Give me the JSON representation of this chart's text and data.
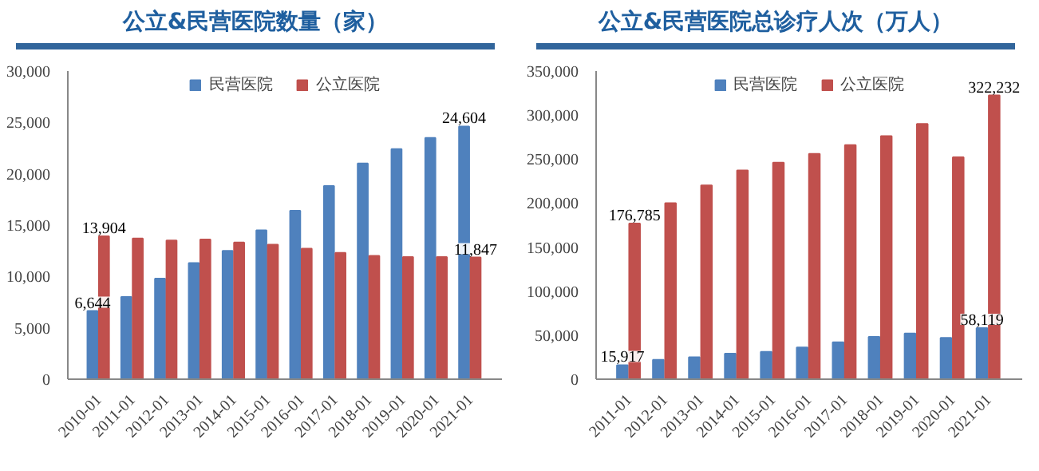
{
  "chart_data": [
    {
      "type": "bar",
      "title": "公立&民营医院数量（家）",
      "categories": [
        "2010-01",
        "2011-01",
        "2012-01",
        "2013-01",
        "2014-01",
        "2015-01",
        "2016-01",
        "2017-01",
        "2018-01",
        "2019-01",
        "2020-01",
        "2021-01"
      ],
      "series": [
        {
          "name": "民营医院",
          "color": "#4f81bd",
          "values": [
            6644,
            8000,
            9800,
            11300,
            12500,
            14500,
            16400,
            18800,
            21000,
            22400,
            23500,
            24604
          ],
          "value_labels": [
            "6,644",
            null,
            null,
            null,
            null,
            null,
            null,
            null,
            null,
            null,
            null,
            "24,604"
          ]
        },
        {
          "name": "公立医院",
          "color": "#c0504d",
          "values": [
            13904,
            13700,
            13500,
            13600,
            13300,
            13100,
            12700,
            12300,
            12000,
            11900,
            11900,
            11847
          ],
          "value_labels": [
            "13,904",
            null,
            null,
            null,
            null,
            null,
            null,
            null,
            null,
            null,
            null,
            "11,847"
          ]
        }
      ],
      "ylim": [
        0,
        30000
      ],
      "yticks": [
        {
          "value": 0,
          "label": "0"
        },
        {
          "value": 5000,
          "label": "5,000"
        },
        {
          "value": 10000,
          "label": "10,000"
        },
        {
          "value": 15000,
          "label": "15,000"
        },
        {
          "value": 20000,
          "label": "20,000"
        },
        {
          "value": 25000,
          "label": "25,000"
        },
        {
          "value": 30000,
          "label": "30,000"
        }
      ],
      "grid": false,
      "legend": "top"
    },
    {
      "type": "bar",
      "title": "公立&民营医院总诊疗人次（万人）",
      "categories": [
        "2011-01",
        "2012-01",
        "2013-01",
        "2014-01",
        "2015-01",
        "2016-01",
        "2017-01",
        "2018-01",
        "2019-01",
        "2020-01",
        "2021-01"
      ],
      "series": [
        {
          "name": "民营医院",
          "color": "#4f81bd",
          "values": [
            15917,
            22000,
            25000,
            29000,
            31000,
            36000,
            42000,
            48000,
            52000,
            47000,
            58119
          ],
          "value_labels": [
            "15,917",
            null,
            null,
            null,
            null,
            null,
            null,
            null,
            null,
            null,
            "58,119"
          ]
        },
        {
          "name": "公立医院",
          "color": "#c0504d",
          "values": [
            176785,
            200000,
            220000,
            237000,
            246000,
            256000,
            266000,
            276000,
            290000,
            252000,
            322232
          ],
          "value_labels": [
            "176,785",
            null,
            null,
            null,
            null,
            null,
            null,
            null,
            null,
            null,
            "322,232"
          ]
        }
      ],
      "ylim": [
        0,
        350000
      ],
      "yticks": [
        {
          "value": 0,
          "label": "0"
        },
        {
          "value": 50000,
          "label": "50,000"
        },
        {
          "value": 100000,
          "label": "100,000"
        },
        {
          "value": 150000,
          "label": "150,000"
        },
        {
          "value": 200000,
          "label": "200,000"
        },
        {
          "value": 250000,
          "label": "250,000"
        },
        {
          "value": 300000,
          "label": "300,000"
        },
        {
          "value": 350000,
          "label": "350,000"
        }
      ],
      "grid": false,
      "legend": "top"
    }
  ]
}
